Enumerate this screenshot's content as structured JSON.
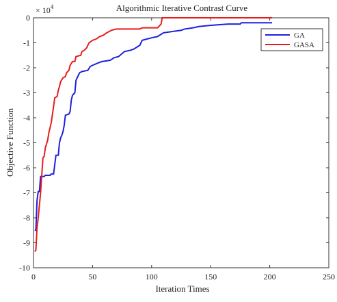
{
  "chart_data": {
    "type": "line",
    "title": "Algorithmic Iterative Contrast Curve",
    "xlabel": "Iteration Times",
    "ylabel": "Objective Function",
    "y_multiplier_label": "× 10",
    "y_multiplier_exponent": "4",
    "xlim": [
      0,
      250
    ],
    "ylim": [
      -10,
      0
    ],
    "x_ticks": [
      0,
      50,
      100,
      150,
      200,
      250
    ],
    "y_ticks": [
      0,
      -1,
      -2,
      -3,
      -4,
      -5,
      -6,
      -7,
      -8,
      -9,
      -10
    ],
    "x_tick_labels": [
      "0",
      "50",
      "100",
      "150",
      "200",
      "250"
    ],
    "y_tick_labels": [
      "0",
      "-1",
      "-2",
      "-3",
      "-4",
      "-5",
      "-6",
      "-7",
      "-8",
      "-9",
      "-10"
    ],
    "grid": false,
    "legend_position": "top-right",
    "series": [
      {
        "name": "GA",
        "color": "#1f1fdc",
        "points": [
          [
            1,
            -8.5
          ],
          [
            2,
            -8.5
          ],
          [
            3,
            -7.3
          ],
          [
            4,
            -6.95
          ],
          [
            5,
            -6.95
          ],
          [
            6,
            -6.35
          ],
          [
            9,
            -6.35
          ],
          [
            10,
            -6.3
          ],
          [
            14,
            -6.3
          ],
          [
            15,
            -6.25
          ],
          [
            17,
            -6.25
          ],
          [
            19,
            -5.5
          ],
          [
            21,
            -5.5
          ],
          [
            22,
            -5.0
          ],
          [
            23,
            -4.8
          ],
          [
            24,
            -4.7
          ],
          [
            25,
            -4.55
          ],
          [
            26,
            -4.3
          ],
          [
            27,
            -3.9
          ],
          [
            30,
            -3.85
          ],
          [
            31,
            -3.75
          ],
          [
            32,
            -3.3
          ],
          [
            33,
            -3.1
          ],
          [
            35,
            -3.0
          ],
          [
            36,
            -2.5
          ],
          [
            37,
            -2.4
          ],
          [
            38,
            -2.3
          ],
          [
            39,
            -2.2
          ],
          [
            41,
            -2.15
          ],
          [
            46,
            -2.1
          ],
          [
            48,
            -1.95
          ],
          [
            50,
            -1.9
          ],
          [
            55,
            -1.8
          ],
          [
            58,
            -1.75
          ],
          [
            65,
            -1.7
          ],
          [
            68,
            -1.6
          ],
          [
            72,
            -1.55
          ],
          [
            77,
            -1.35
          ],
          [
            82,
            -1.3
          ],
          [
            85,
            -1.25
          ],
          [
            90,
            -1.1
          ],
          [
            92,
            -0.9
          ],
          [
            96,
            -0.85
          ],
          [
            100,
            -0.8
          ],
          [
            105,
            -0.75
          ],
          [
            110,
            -0.6
          ],
          [
            125,
            -0.5
          ],
          [
            128,
            -0.45
          ],
          [
            135,
            -0.4
          ],
          [
            140,
            -0.35
          ],
          [
            150,
            -0.3
          ],
          [
            165,
            -0.25
          ],
          [
            175,
            -0.25
          ],
          [
            176,
            -0.2
          ],
          [
            202,
            -0.2
          ]
        ]
      },
      {
        "name": "GASA",
        "color": "#e61c1c",
        "points": [
          [
            1,
            -9.35
          ],
          [
            2,
            -9.3
          ],
          [
            3,
            -8.4
          ],
          [
            4,
            -8.0
          ],
          [
            6,
            -7.0
          ],
          [
            7,
            -6.3
          ],
          [
            8,
            -5.6
          ],
          [
            9,
            -5.55
          ],
          [
            10,
            -5.2
          ],
          [
            12,
            -4.9
          ],
          [
            13,
            -4.6
          ],
          [
            15,
            -4.2
          ],
          [
            17,
            -3.55
          ],
          [
            18,
            -3.2
          ],
          [
            20,
            -3.15
          ],
          [
            21,
            -2.9
          ],
          [
            22,
            -2.75
          ],
          [
            23,
            -2.55
          ],
          [
            25,
            -2.4
          ],
          [
            27,
            -2.35
          ],
          [
            28,
            -2.2
          ],
          [
            30,
            -2.1
          ],
          [
            31,
            -1.9
          ],
          [
            33,
            -1.75
          ],
          [
            35,
            -1.75
          ],
          [
            36,
            -1.55
          ],
          [
            40,
            -1.5
          ],
          [
            41,
            -1.35
          ],
          [
            43,
            -1.3
          ],
          [
            45,
            -1.2
          ],
          [
            47,
            -1.0
          ],
          [
            50,
            -0.9
          ],
          [
            53,
            -0.85
          ],
          [
            56,
            -0.75
          ],
          [
            59,
            -0.7
          ],
          [
            62,
            -0.6
          ],
          [
            66,
            -0.5
          ],
          [
            70,
            -0.45
          ],
          [
            90,
            -0.45
          ],
          [
            92,
            -0.4
          ],
          [
            105,
            -0.4
          ],
          [
            107,
            -0.3
          ],
          [
            108,
            -0.25
          ],
          [
            109,
            0.0
          ],
          [
            202,
            0.0
          ]
        ]
      }
    ]
  }
}
